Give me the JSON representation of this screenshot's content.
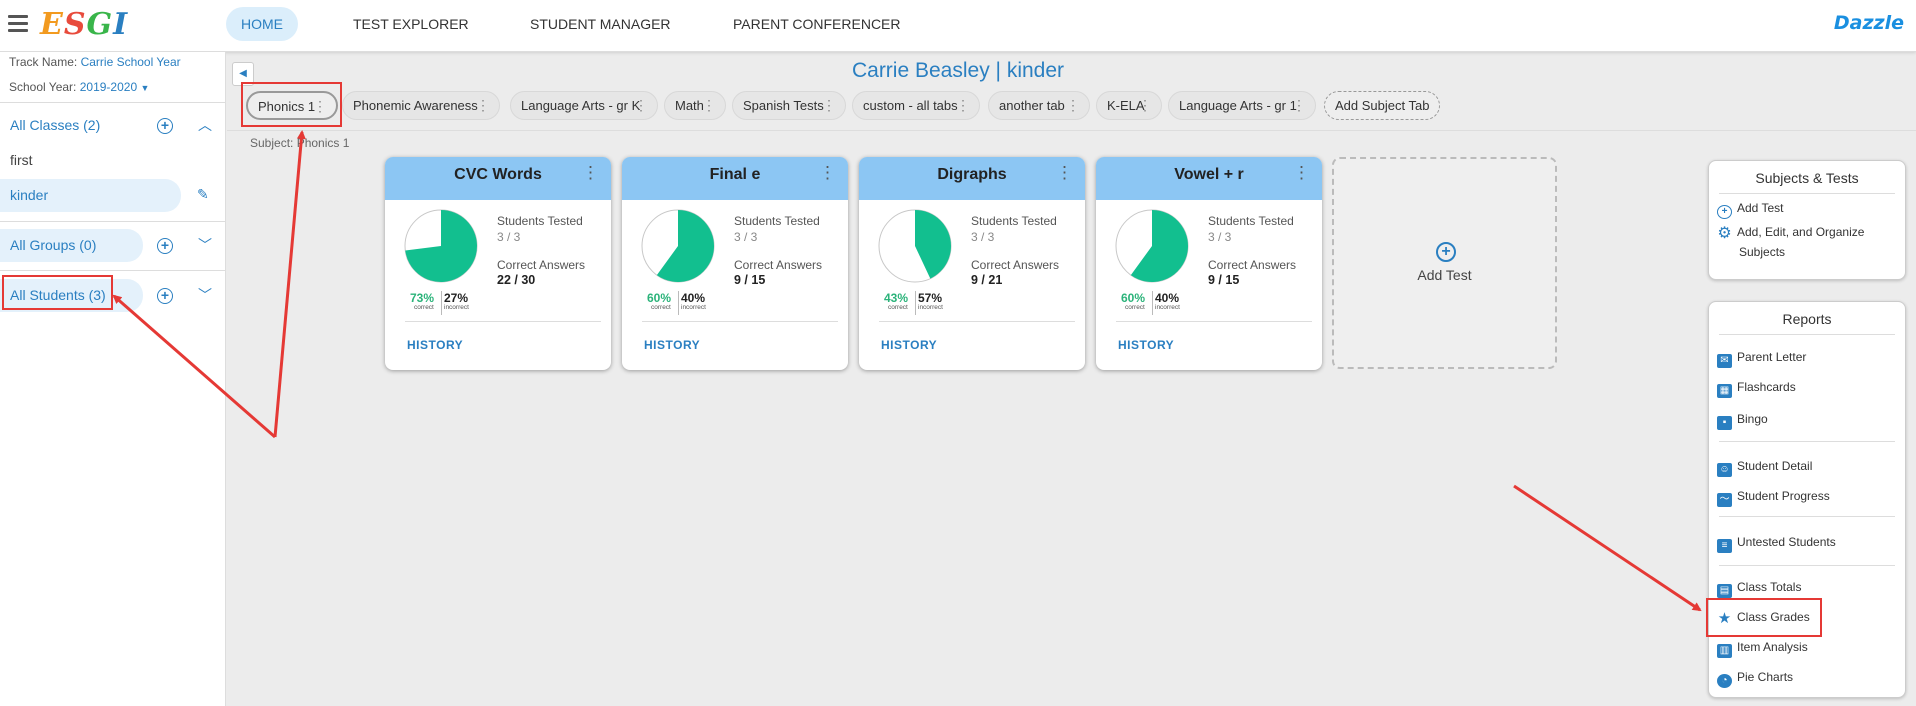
{
  "app": {
    "logo": "ESGI",
    "brand_right": "Dazzle"
  },
  "nav": [
    "HOME",
    "TEST EXPLORER",
    "STUDENT MANAGER",
    "PARENT CONFERENCER"
  ],
  "sidebar": {
    "track_label": "Track Name:",
    "track_value": "Carrie School Year",
    "year_label": "School Year:",
    "year_value": "2019-2020",
    "all_classes": "All Classes (2)",
    "classes": [
      "first",
      "kinder"
    ],
    "all_groups": "All Groups (0)",
    "all_students": "All Students (3)"
  },
  "header": {
    "title": "Carrie Beasley | kinder",
    "subject": "Subject: Phonics 1"
  },
  "tabs": [
    "Phonics 1",
    "Phonemic Awareness",
    "Language Arts - gr K",
    "Math",
    "Spanish Tests",
    "custom - all tabs",
    "another tab",
    "K-ELA",
    "Language Arts - gr 1"
  ],
  "add_tab_label": "Add Subject Tab",
  "labels": {
    "students_tested": "Students Tested",
    "correct_answers": "Correct Answers",
    "history": "HISTORY",
    "correct": "correct",
    "incorrect": "incorrect",
    "add_test": "Add Test"
  },
  "cards": [
    {
      "title": "CVC Words",
      "tested": "3 / 3",
      "answers": "22 / 30",
      "correct_pct": "73%",
      "incorrect_pct": "27%",
      "fraction": 0.73
    },
    {
      "title": "Final e",
      "tested": "3 / 3",
      "answers": "9 / 15",
      "correct_pct": "60%",
      "incorrect_pct": "40%",
      "fraction": 0.6
    },
    {
      "title": "Digraphs",
      "tested": "3 / 3",
      "answers": "9 / 21",
      "correct_pct": "43%",
      "incorrect_pct": "57%",
      "fraction": 0.43
    },
    {
      "title": "Vowel + r",
      "tested": "3 / 3",
      "answers": "9 / 15",
      "correct_pct": "60%",
      "incorrect_pct": "40%",
      "fraction": 0.6
    }
  ],
  "subjects_tests": {
    "title": "Subjects & Tests",
    "items": [
      "Add Test",
      "Add, Edit, and Organize",
      "Subjects"
    ]
  },
  "reports": {
    "title": "Reports",
    "items": [
      "Parent Letter",
      "Flashcards",
      "Bingo",
      "Student Detail",
      "Student Progress",
      "Untested Students",
      "Class Totals",
      "Class Grades",
      "Item Analysis",
      "Pie Charts"
    ]
  },
  "colors": {
    "accent": "#2a7fc1",
    "card_header": "#8cc6f3",
    "pie_correct": "#12bf8f",
    "annotation": "#e53935"
  }
}
